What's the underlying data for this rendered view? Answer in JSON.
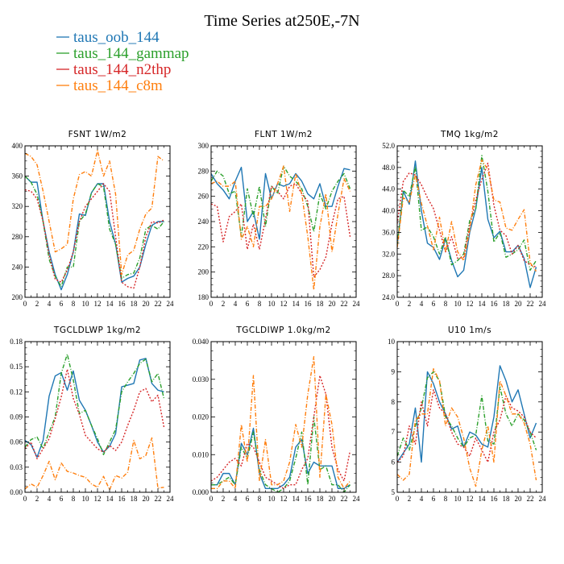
{
  "figure": {
    "title": "Time Series at250E,-7N"
  },
  "legend": [
    {
      "label": "taus_oob_144",
      "color": "#1f77b4",
      "dash": "solid"
    },
    {
      "label": "taus_144_gammap",
      "color": "#2ca02c",
      "dash": "dashdot"
    },
    {
      "label": "taus_144_n2thp",
      "color": "#d62728",
      "dash": "dotted"
    },
    {
      "label": "taus_144_c8m",
      "color": "#ff7f0e",
      "dash": "dashdot"
    }
  ],
  "chart_data": [
    {
      "type": "line",
      "title": "FSNT   1W/m2",
      "x": [
        0,
        1,
        2,
        3,
        4,
        5,
        6,
        7,
        8,
        9,
        10,
        11,
        12,
        13,
        14,
        15,
        16,
        17,
        18,
        19,
        20,
        21,
        22,
        23
      ],
      "xlim": [
        0,
        24
      ],
      "xticks": [
        "0",
        "2",
        "4",
        "6",
        "8",
        "10",
        "12",
        "14",
        "16",
        "18",
        "20",
        "22",
        "24"
      ],
      "ylim": [
        200,
        400
      ],
      "yticks": [
        "200",
        "240",
        "280",
        "320",
        "360",
        "400"
      ],
      "series": [
        {
          "name": "taus_oob_144",
          "values": [
            360,
            352,
            352,
            300,
            260,
            230,
            210,
            230,
            260,
            310,
            308,
            338,
            350,
            350,
            300,
            270,
            220,
            225,
            228,
            240,
            270,
            295,
            300,
            300
          ]
        },
        {
          "name": "taus_144_gammap",
          "values": [
            360,
            352,
            336,
            300,
            250,
            228,
            214,
            240,
            240,
            300,
            310,
            338,
            350,
            346,
            290,
            270,
            225,
            230,
            232,
            252,
            290,
            295,
            290,
            300
          ]
        },
        {
          "name": "taus_144_n2thp",
          "values": [
            342,
            340,
            330,
            300,
            256,
            224,
            220,
            236,
            260,
            300,
            320,
            330,
            340,
            350,
            340,
            280,
            220,
            214,
            212,
            240,
            280,
            300,
            298,
            302
          ]
        },
        {
          "name": "taus_144_c8m",
          "values": [
            390,
            386,
            375,
            340,
            300,
            260,
            264,
            270,
            330,
            362,
            366,
            360,
            394,
            360,
            380,
            336,
            230,
            256,
            262,
            290,
            310,
            318,
            386,
            380
          ]
        }
      ]
    },
    {
      "type": "line",
      "title": "FLNT   1W/m2",
      "x": [
        0,
        1,
        2,
        3,
        4,
        5,
        6,
        7,
        8,
        9,
        10,
        11,
        12,
        13,
        14,
        15,
        16,
        17,
        18,
        19,
        20,
        21,
        22,
        23
      ],
      "xlim": [
        0,
        24
      ],
      "xticks": [
        "0",
        "2",
        "4",
        "6",
        "8",
        "10",
        "12",
        "14",
        "16",
        "18",
        "20",
        "22",
        "24"
      ],
      "ylim": [
        180,
        300
      ],
      "yticks": [
        "180",
        "200",
        "220",
        "240",
        "260",
        "280",
        "300"
      ],
      "series": [
        {
          "name": "taus_oob_144",
          "values": [
            278,
            270,
            265,
            258,
            272,
            283,
            240,
            248,
            226,
            278,
            258,
            270,
            268,
            270,
            278,
            272,
            262,
            258,
            270,
            252,
            252,
            268,
            282,
            281
          ]
        },
        {
          "name": "taus_144_gammap",
          "values": [
            272,
            280,
            276,
            262,
            264,
            228,
            266,
            244,
            268,
            236,
            268,
            262,
            284,
            276,
            272,
            266,
            252,
            232,
            262,
            250,
            264,
            272,
            278,
            266
          ]
        },
        {
          "name": "taus_144_n2thp",
          "values": [
            254,
            252,
            224,
            244,
            248,
            254,
            218,
            238,
            218,
            242,
            268,
            264,
            258,
            268,
            270,
            262,
            256,
            196,
            202,
            212,
            238,
            258,
            260,
            228
          ]
        },
        {
          "name": "taus_144_c8m",
          "values": [
            270,
            272,
            268,
            268,
            272,
            226,
            236,
            220,
            252,
            252,
            258,
            270,
            284,
            248,
            278,
            262,
            228,
            186,
            236,
            262,
            216,
            246,
            274,
            264
          ]
        }
      ]
    },
    {
      "type": "line",
      "title": "TMQ   1kg/m2",
      "x": [
        0,
        1,
        2,
        3,
        4,
        5,
        6,
        7,
        8,
        9,
        10,
        11,
        12,
        13,
        14,
        15,
        16,
        17,
        18,
        19,
        20,
        21,
        22,
        23
      ],
      "xlim": [
        0,
        24
      ],
      "xticks": [
        "0",
        "2",
        "4",
        "6",
        "8",
        "10",
        "12",
        "14",
        "16",
        "18",
        "20",
        "22",
        "24"
      ],
      "ylim": [
        24,
        52
      ],
      "yticks": [
        "24.0",
        "28.0",
        "32.0",
        "36.0",
        "40.0",
        "44.0",
        "48.0",
        "52.0"
      ],
      "series": [
        {
          "name": "taus_oob_144",
          "values": [
            33.6,
            43.6,
            41.2,
            49.2,
            40.0,
            34.0,
            33.2,
            31.0,
            34.8,
            30.8,
            27.8,
            29.0,
            36.0,
            40.4,
            48.0,
            38.4,
            35.0,
            36.2,
            32.4,
            32.4,
            33.6,
            31.2,
            25.8,
            29.6
          ]
        },
        {
          "name": "taus_144_gammap",
          "values": [
            33.6,
            43.8,
            42.6,
            48.2,
            36.4,
            37.0,
            35.2,
            32.0,
            35.2,
            30.0,
            30.8,
            32.0,
            38.2,
            40.4,
            50.2,
            43.6,
            34.2,
            36.0,
            31.4,
            32.0,
            32.8,
            34.6,
            29.0,
            30.8
          ]
        },
        {
          "name": "taus_144_n2thp",
          "values": [
            37.6,
            45.4,
            47.0,
            46.6,
            44.8,
            42.4,
            40.4,
            36.4,
            32.4,
            35.2,
            31.2,
            31.4,
            37.2,
            42.0,
            45.8,
            48.8,
            41.0,
            36.4,
            35.4,
            32.0,
            33.6,
            30.8,
            30.0,
            29.6
          ]
        },
        {
          "name": "taus_144_c8m",
          "values": [
            33.2,
            42.4,
            41.6,
            46.6,
            41.4,
            37.2,
            32.8,
            38.8,
            32.4,
            38.0,
            32.4,
            30.8,
            36.4,
            44.8,
            49.4,
            47.6,
            42.0,
            41.6,
            36.8,
            36.4,
            38.4,
            40.2,
            30.4,
            28.8
          ]
        }
      ]
    },
    {
      "type": "line",
      "title": "TGCLDLWP   1kg/m2",
      "x": [
        0,
        1,
        2,
        3,
        4,
        5,
        6,
        7,
        8,
        9,
        10,
        11,
        12,
        13,
        14,
        15,
        16,
        17,
        18,
        19,
        20,
        21,
        22,
        23
      ],
      "xlim": [
        0,
        24
      ],
      "xticks": [
        "0",
        "2",
        "4",
        "6",
        "8",
        "10",
        "12",
        "14",
        "16",
        "18",
        "20",
        "22",
        "24"
      ],
      "ylim": [
        0,
        0.18
      ],
      "yticks": [
        "0.00",
        "0.03",
        "0.06",
        "0.09",
        "0.12",
        "0.15",
        "0.18"
      ],
      "series": [
        {
          "name": "taus_oob_144",
          "values": [
            0.062,
            0.057,
            0.042,
            0.062,
            0.115,
            0.139,
            0.143,
            0.122,
            0.145,
            0.11,
            0.098,
            0.08,
            0.06,
            0.048,
            0.055,
            0.07,
            0.126,
            0.128,
            0.13,
            0.158,
            0.16,
            0.13,
            0.122,
            0.12
          ]
        },
        {
          "name": "taus_144_gammap",
          "values": [
            0.054,
            0.063,
            0.066,
            0.052,
            0.072,
            0.09,
            0.142,
            0.165,
            0.134,
            0.094,
            0.098,
            0.08,
            0.064,
            0.045,
            0.06,
            0.075,
            0.12,
            0.132,
            0.142,
            0.154,
            0.159,
            0.132,
            0.142,
            0.112
          ]
        },
        {
          "name": "taus_144_n2thp",
          "values": [
            0.052,
            0.06,
            0.04,
            0.052,
            0.064,
            0.088,
            0.114,
            0.147,
            0.112,
            0.093,
            0.068,
            0.06,
            0.052,
            0.048,
            0.056,
            0.05,
            0.06,
            0.08,
            0.098,
            0.12,
            0.124,
            0.108,
            0.116,
            0.078
          ]
        },
        {
          "name": "taus_144_c8m",
          "values": [
            0.004,
            0.01,
            0.006,
            0.02,
            0.037,
            0.015,
            0.035,
            0.025,
            0.023,
            0.02,
            0.018,
            0.01,
            0.006,
            0.019,
            0.003,
            0.02,
            0.017,
            0.024,
            0.062,
            0.04,
            0.044,
            0.065,
            0.005,
            0.006
          ]
        }
      ]
    },
    {
      "type": "line",
      "title": "TGCLDIWP   1.0kg/m2",
      "x": [
        0,
        1,
        2,
        3,
        4,
        5,
        6,
        7,
        8,
        9,
        10,
        11,
        12,
        13,
        14,
        15,
        16,
        17,
        18,
        19,
        20,
        21,
        22,
        23
      ],
      "xlim": [
        0,
        24
      ],
      "xticks": [
        "0",
        "2",
        "4",
        "6",
        "8",
        "10",
        "12",
        "14",
        "16",
        "18",
        "20",
        "22",
        "24"
      ],
      "ylim": [
        0,
        0.04
      ],
      "yticks": [
        "0.000",
        "0.010",
        "0.020",
        "0.030",
        "0.040"
      ],
      "series": [
        {
          "name": "taus_oob_144",
          "values": [
            0.002,
            0.002,
            0.005,
            0.005,
            0.002,
            0.013,
            0.01,
            0.017,
            0.005,
            0.001,
            0.001,
            0.001,
            0.002,
            0.004,
            0.012,
            0.014,
            0.005,
            0.008,
            0.007,
            0.007,
            0.007,
            0.001,
            0.001,
            0.002
          ]
        },
        {
          "name": "taus_144_gammap",
          "values": [
            0.002,
            0.002,
            0.003,
            0.004,
            0.002,
            0.012,
            0.009,
            0.016,
            0.006,
            0.002,
            0.001,
            0.0,
            0.001,
            0.003,
            0.009,
            0.016,
            0.002,
            0.02,
            0.006,
            0.007,
            0.002,
            0.002,
            0.0,
            0.002
          ]
        },
        {
          "name": "taus_144_n2thp",
          "values": [
            0.003,
            0.004,
            0.006,
            0.008,
            0.009,
            0.007,
            0.013,
            0.012,
            0.008,
            0.004,
            0.003,
            0.002,
            0.001,
            0.002,
            0.002,
            0.006,
            0.009,
            0.02,
            0.031,
            0.026,
            0.012,
            0.006,
            0.003,
            0.011
          ]
        },
        {
          "name": "taus_144_c8m",
          "values": [
            0.001,
            0.001,
            0.003,
            0.003,
            0.001,
            0.018,
            0.008,
            0.031,
            0.003,
            0.014,
            0.002,
            0.002,
            0.003,
            0.008,
            0.018,
            0.012,
            0.026,
            0.036,
            0.004,
            0.026,
            0.018,
            0.004,
            0.001,
            0.003
          ]
        }
      ]
    },
    {
      "type": "line",
      "title": "U10   1m/s",
      "x": [
        0,
        1,
        2,
        3,
        4,
        5,
        6,
        7,
        8,
        9,
        10,
        11,
        12,
        13,
        14,
        15,
        16,
        17,
        18,
        19,
        20,
        21,
        22,
        23
      ],
      "xlim": [
        0,
        24
      ],
      "xticks": [
        "0",
        "2",
        "4",
        "6",
        "8",
        "10",
        "12",
        "14",
        "16",
        "18",
        "20",
        "22",
        "24"
      ],
      "ylim": [
        5,
        10
      ],
      "yticks": [
        "5",
        "6",
        "7",
        "8",
        "9",
        "10"
      ],
      "series": [
        {
          "name": "taus_oob_144",
          "values": [
            6.0,
            6.3,
            6.6,
            7.8,
            6.0,
            9.0,
            8.6,
            8.0,
            7.6,
            7.1,
            7.2,
            6.5,
            7.0,
            6.9,
            6.6,
            6.5,
            7.5,
            9.2,
            8.7,
            8.0,
            8.4,
            7.6,
            6.8,
            7.3
          ]
        },
        {
          "name": "taus_144_gammap",
          "values": [
            6.2,
            6.8,
            6.4,
            7.2,
            7.8,
            8.8,
            9.0,
            8.7,
            7.5,
            7.2,
            6.8,
            6.5,
            6.8,
            6.9,
            8.2,
            6.7,
            6.6,
            8.5,
            7.6,
            7.2,
            7.6,
            7.4,
            7.0,
            6.4
          ]
        },
        {
          "name": "taus_144_n2thp",
          "values": [
            6.0,
            6.2,
            7.2,
            6.6,
            8.0,
            7.2,
            8.4,
            7.8,
            7.6,
            7.0,
            6.6,
            6.5,
            6.2,
            6.8,
            6.4,
            6.0,
            7.0,
            7.4,
            8.2,
            7.8,
            7.7,
            7.5,
            7.0,
            6.8
          ]
        },
        {
          "name": "taus_144_c8m",
          "values": [
            5.6,
            5.4,
            5.6,
            7.4,
            7.6,
            7.6,
            9.1,
            8.7,
            7.2,
            7.8,
            7.5,
            6.8,
            5.8,
            5.2,
            6.4,
            7.2,
            6.0,
            8.7,
            8.2,
            7.6,
            7.6,
            7.3,
            6.6,
            5.4
          ]
        }
      ]
    }
  ]
}
